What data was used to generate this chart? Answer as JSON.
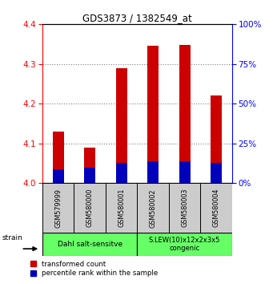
{
  "title": "GDS3873 / 1382549_at",
  "samples": [
    "GSM579999",
    "GSM580000",
    "GSM580001",
    "GSM580002",
    "GSM580003",
    "GSM580004"
  ],
  "red_values": [
    4.13,
    4.09,
    4.29,
    4.345,
    4.348,
    4.22
  ],
  "blue_values": [
    4.035,
    4.038,
    4.052,
    4.055,
    4.055,
    4.052
  ],
  "ylim": [
    4.0,
    4.4
  ],
  "yticks_left": [
    4.0,
    4.1,
    4.2,
    4.3,
    4.4
  ],
  "yticks_right": [
    0,
    25,
    50,
    75,
    100
  ],
  "group1_label": "Dahl salt-sensitve",
  "group2_label": "S.LEW(10)x12x2x3x5\ncongenic",
  "group_color": "#66FF66",
  "sample_bg": "#cccccc",
  "bar_width": 0.35,
  "red_color": "#CC0000",
  "blue_color": "#0000BB",
  "legend_red": "transformed count",
  "legend_blue": "percentile rank within the sample",
  "strain_label": "strain"
}
